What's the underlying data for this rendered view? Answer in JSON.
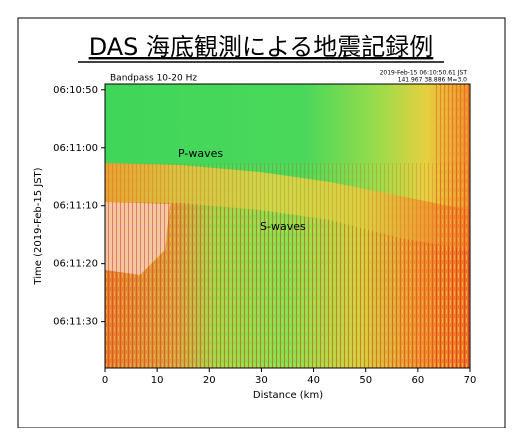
{
  "chart_data": {
    "type": "image",
    "title": "DAS 海底観測による地震記録例",
    "subtitle": "Bandpass 10-20 Hz",
    "info": [
      "2019-Feb-15 06:10:50.61 JST",
      "141.967 38.886 M=3.0"
    ],
    "annotations": [
      "P-waves",
      "S-waves"
    ],
    "xlabel": "Distance (km)",
    "ylabel": "Time (2019-Feb-15 JST)",
    "xlim": [
      0,
      70
    ],
    "xticks": [
      0,
      10,
      20,
      30,
      40,
      50,
      60,
      70
    ],
    "ylim": [
      "06:10:49",
      "06:11:38"
    ],
    "yticks": [
      "06:10:50",
      "06:11:00",
      "06:11:10",
      "06:11:20",
      "06:11:30"
    ]
  }
}
